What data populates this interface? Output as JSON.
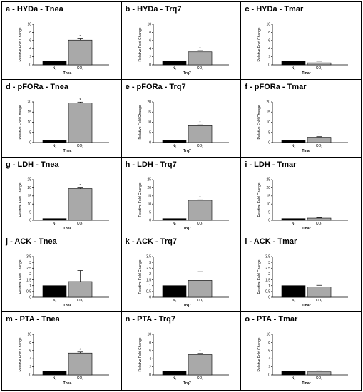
{
  "figure": {
    "cond_control": "N₂",
    "cond_treated": "CO₂",
    "ylabel": "Relative Fold Change"
  },
  "chart_data": [
    {
      "type": "bar",
      "title": "a - HYDa - Tnea",
      "xlabel": "Tnea",
      "categories": [
        "N₂",
        "CO₂"
      ],
      "values": [
        1,
        6.1
      ],
      "errors": [
        0,
        0.3
      ],
      "significant": [
        false,
        true
      ],
      "ylim": [
        0,
        10
      ],
      "yticks": [
        0,
        2,
        4,
        6,
        8,
        10
      ],
      "ylabel": "Relative Fold Change",
      "colors": [
        "#000000",
        "#a9a9a9"
      ]
    },
    {
      "type": "bar",
      "title": "b - HYDa - Trq7",
      "xlabel": "Trq7",
      "categories": [
        "N₂",
        "CO₂"
      ],
      "values": [
        1,
        3.2
      ],
      "errors": [
        0,
        0.3
      ],
      "significant": [
        false,
        true
      ],
      "ylim": [
        0,
        10
      ],
      "yticks": [
        0,
        2,
        4,
        6,
        8,
        10
      ],
      "ylabel": "Relative Fold Change",
      "colors": [
        "#000000",
        "#a9a9a9"
      ]
    },
    {
      "type": "bar",
      "title": "c - HYDa - Tmar",
      "xlabel": "Tmar",
      "categories": [
        "N₂",
        "CO₂"
      ],
      "values": [
        1,
        0.5
      ],
      "errors": [
        0,
        0.4
      ],
      "significant": [
        false,
        false
      ],
      "ylim": [
        0,
        10
      ],
      "yticks": [
        0,
        2,
        4,
        6,
        8,
        10
      ],
      "ylabel": "Relative Fold Change",
      "colors": [
        "#000000",
        "#a9a9a9"
      ]
    },
    {
      "type": "bar",
      "title": "d - pFORa - Tnea",
      "xlabel": "Tnea",
      "categories": [
        "N₂",
        "CO₂"
      ],
      "values": [
        1,
        19.5
      ],
      "errors": [
        0,
        0.4
      ],
      "significant": [
        false,
        true
      ],
      "ylim": [
        0,
        20
      ],
      "yticks": [
        0,
        5,
        10,
        15,
        20
      ],
      "ylabel": "Relative Fold Change",
      "colors": [
        "#000000",
        "#a9a9a9"
      ]
    },
    {
      "type": "bar",
      "title": "e - pFORa - Trq7",
      "xlabel": "Trq7",
      "categories": [
        "N₂",
        "CO₂"
      ],
      "values": [
        1,
        8.3
      ],
      "errors": [
        0,
        0.4
      ],
      "significant": [
        false,
        true
      ],
      "ylim": [
        0,
        20
      ],
      "yticks": [
        0,
        5,
        10,
        15,
        20
      ],
      "ylabel": "Relative Fold Change",
      "colors": [
        "#000000",
        "#a9a9a9"
      ]
    },
    {
      "type": "bar",
      "title": "f - pFORa - Tmar",
      "xlabel": "Tmar",
      "categories": [
        "N₂",
        "CO₂"
      ],
      "values": [
        1,
        2.6
      ],
      "errors": [
        0,
        0.3
      ],
      "significant": [
        false,
        true
      ],
      "ylim": [
        0,
        20
      ],
      "yticks": [
        0,
        5,
        10,
        15,
        20
      ],
      "ylabel": "Relative Fold Change",
      "colors": [
        "#000000",
        "#a9a9a9"
      ]
    },
    {
      "type": "bar",
      "title": "g - LDH - Tnea",
      "xlabel": "Tnea",
      "categories": [
        "N₂",
        "CO₂"
      ],
      "values": [
        1,
        19.5
      ],
      "errors": [
        0,
        0.4
      ],
      "significant": [
        false,
        true
      ],
      "ylim": [
        0,
        25
      ],
      "yticks": [
        0,
        5,
        10,
        15,
        20,
        25
      ],
      "ylabel": "Relative Fold Change",
      "colors": [
        "#000000",
        "#a9a9a9"
      ]
    },
    {
      "type": "bar",
      "title": "h - LDH - Trq7",
      "xlabel": "Trq7",
      "categories": [
        "N₂",
        "CO₂"
      ],
      "values": [
        1,
        12.3
      ],
      "errors": [
        0,
        0.3
      ],
      "significant": [
        false,
        true
      ],
      "ylim": [
        0,
        25
      ],
      "yticks": [
        0,
        5,
        10,
        15,
        20,
        25
      ],
      "ylabel": "Relative Fold Change",
      "colors": [
        "#000000",
        "#a9a9a9"
      ]
    },
    {
      "type": "bar",
      "title": "i - LDH - Tmar",
      "xlabel": "Tmar",
      "categories": [
        "N₂",
        "CO₂"
      ],
      "values": [
        1,
        1.3
      ],
      "errors": [
        0,
        0.3
      ],
      "significant": [
        false,
        false
      ],
      "ylim": [
        0,
        25
      ],
      "yticks": [
        0,
        5,
        10,
        15,
        20,
        25
      ],
      "ylabel": "Relative Fold Change",
      "colors": [
        "#000000",
        "#a9a9a9"
      ]
    },
    {
      "type": "bar",
      "title": "j - ACK - Tnea",
      "xlabel": "Tnea",
      "categories": [
        "N₂",
        "CO₂"
      ],
      "values": [
        1,
        1.35
      ],
      "errors": [
        0,
        0.95
      ],
      "significant": [
        false,
        false
      ],
      "ylim": [
        0,
        3.5
      ],
      "yticks": [
        0,
        0.5,
        1,
        1.5,
        2,
        2.5,
        3,
        3.5
      ],
      "ylabel": "Relative Fold Change",
      "colors": [
        "#000000",
        "#a9a9a9"
      ]
    },
    {
      "type": "bar",
      "title": "k - ACK - Trq7",
      "xlabel": "Trq7",
      "categories": [
        "N₂",
        "CO₂"
      ],
      "values": [
        1,
        1.45
      ],
      "errors": [
        0,
        0.75
      ],
      "significant": [
        false,
        false
      ],
      "ylim": [
        0,
        3.5
      ],
      "yticks": [
        0,
        0.5,
        1,
        1.5,
        2,
        2.5,
        3,
        3.5
      ],
      "ylabel": "Relative Fold Change",
      "colors": [
        "#000000",
        "#a9a9a9"
      ]
    },
    {
      "type": "bar",
      "title": "l - ACK - Tmar",
      "xlabel": "Tmar",
      "categories": [
        "N₂",
        "CO₂"
      ],
      "values": [
        1,
        0.88
      ],
      "errors": [
        0,
        0.15
      ],
      "significant": [
        false,
        false
      ],
      "ylim": [
        0,
        3.5
      ],
      "yticks": [
        0,
        0.5,
        1,
        1.5,
        2,
        2.5,
        3,
        3.5
      ],
      "ylabel": "Relative Fold Change",
      "colors": [
        "#000000",
        "#a9a9a9"
      ]
    },
    {
      "type": "bar",
      "title": "m - PTA - Tnea",
      "xlabel": "Tnea",
      "categories": [
        "N₂",
        "CO₂"
      ],
      "values": [
        1,
        5.4
      ],
      "errors": [
        0,
        0.25
      ],
      "significant": [
        false,
        true
      ],
      "ylim": [
        0,
        10
      ],
      "yticks": [
        0,
        2,
        4,
        6,
        8,
        10
      ],
      "ylabel": "Relative Fold Change",
      "colors": [
        "#000000",
        "#a9a9a9"
      ]
    },
    {
      "type": "bar",
      "title": "n - PTA - Trq7",
      "xlabel": "Trq7",
      "categories": [
        "N₂",
        "CO₂"
      ],
      "values": [
        1,
        5.0
      ],
      "errors": [
        0,
        0.3
      ],
      "significant": [
        false,
        true
      ],
      "ylim": [
        0,
        10
      ],
      "yticks": [
        0,
        2,
        4,
        6,
        8,
        10
      ],
      "ylabel": "Relative Fold Change",
      "colors": [
        "#000000",
        "#a9a9a9"
      ]
    },
    {
      "type": "bar",
      "title": "o - PTA - Tmar",
      "xlabel": "Tmar",
      "categories": [
        "N₂",
        "CO₂"
      ],
      "values": [
        1,
        0.75
      ],
      "errors": [
        0,
        0.25
      ],
      "significant": [
        false,
        false
      ],
      "ylim": [
        0,
        10
      ],
      "yticks": [
        0,
        2,
        4,
        6,
        8,
        10
      ],
      "ylabel": "Relative Fold Change",
      "colors": [
        "#000000",
        "#a9a9a9"
      ]
    }
  ]
}
